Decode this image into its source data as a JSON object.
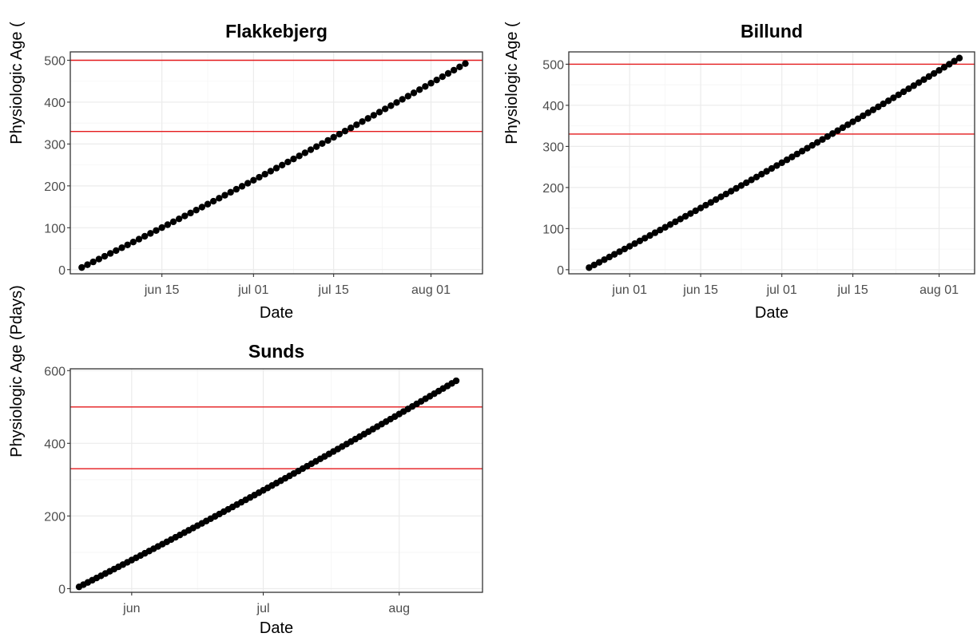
{
  "chart_data": [
    {
      "type": "scatter",
      "title": "Flakkebjerg",
      "xlabel": "Date",
      "ylabel": "Physiologic Age (",
      "x_ticks": [
        {
          "date": "2021-06-15",
          "label": "jun 15"
        },
        {
          "date": "2021-07-01",
          "label": "jul 01"
        },
        {
          "date": "2021-07-15",
          "label": "jul 15"
        },
        {
          "date": "2021-08-01",
          "label": "aug 01"
        }
      ],
      "y_ticks": [
        0,
        100,
        200,
        300,
        400,
        500
      ],
      "xlim": [
        "2021-05-30",
        "2021-08-10"
      ],
      "ylim": [
        -10,
        520
      ],
      "hlines": [
        330,
        500
      ],
      "hline_color": "#e41a1c",
      "points": {
        "x_start": "2021-06-01",
        "x_end": "2021-08-07",
        "y_start": 5,
        "y_end": 492
      }
    },
    {
      "type": "scatter",
      "title": "Billund",
      "xlabel": "Date",
      "ylabel": "Physiologic Age (",
      "x_ticks": [
        {
          "date": "2021-06-01",
          "label": "jun 01"
        },
        {
          "date": "2021-06-15",
          "label": "jun 15"
        },
        {
          "date": "2021-07-01",
          "label": "jul 01"
        },
        {
          "date": "2021-07-15",
          "label": "jul 15"
        },
        {
          "date": "2021-08-01",
          "label": "aug 01"
        }
      ],
      "y_ticks": [
        0,
        100,
        200,
        300,
        400,
        500
      ],
      "xlim": [
        "2021-05-20",
        "2021-08-08"
      ],
      "ylim": [
        -10,
        530
      ],
      "hlines": [
        330,
        500
      ],
      "hline_color": "#e41a1c",
      "points": {
        "x_start": "2021-05-24",
        "x_end": "2021-08-05",
        "y_start": 5,
        "y_end": 515
      }
    },
    {
      "type": "scatter",
      "title": "Sunds",
      "xlabel": "Date",
      "ylabel": "Physiologic Age (Pdays)",
      "x_ticks": [
        {
          "date": "2021-06-01",
          "label": "jun"
        },
        {
          "date": "2021-07-01",
          "label": "jul"
        },
        {
          "date": "2021-08-01",
          "label": "aug"
        }
      ],
      "y_ticks": [
        0,
        200,
        400,
        600
      ],
      "xlim": [
        "2021-05-18",
        "2021-08-20"
      ],
      "ylim": [
        -10,
        605
      ],
      "hlines": [
        330,
        500
      ],
      "hline_color": "#e41a1c",
      "points": {
        "x_start": "2021-05-20",
        "x_end": "2021-08-14",
        "y_start": 5,
        "y_end": 572
      }
    }
  ]
}
